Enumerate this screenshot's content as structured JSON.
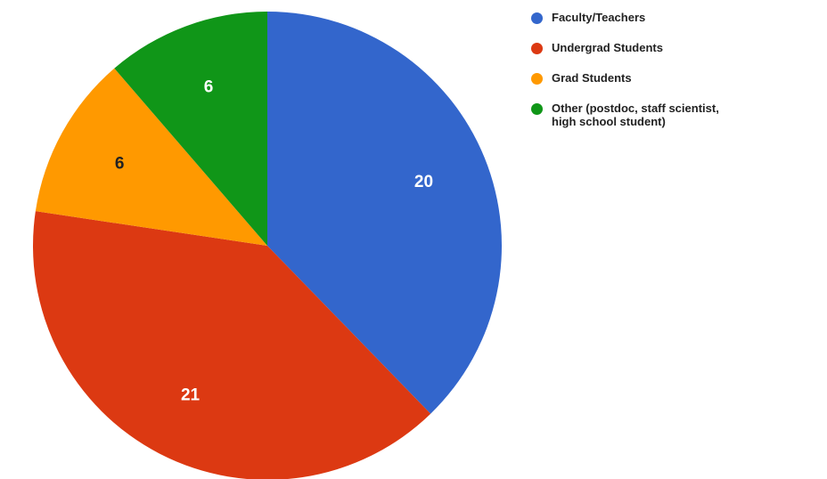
{
  "chart_data": {
    "type": "pie",
    "title": "",
    "start_angle_deg": 0,
    "direction": "clockwise",
    "legend_position": "right",
    "slices": [
      {
        "label": "Faculty/Teachers",
        "value": 20,
        "color": "#3366cc",
        "label_color": "#ffffff"
      },
      {
        "label": "Undergrad Students",
        "value": 21,
        "color": "#dc3912",
        "label_color": "#ffffff"
      },
      {
        "label": "Grad Students",
        "value": 6,
        "color": "#ff9900",
        "label_color": "#222222"
      },
      {
        "label": "Other (postdoc, staff scientist,\nhigh school student)",
        "value": 6,
        "color": "#109618",
        "label_color": "#ffffff"
      }
    ]
  }
}
